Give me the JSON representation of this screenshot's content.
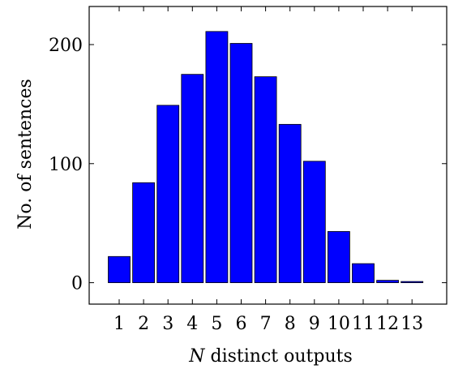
{
  "chart_data": {
    "type": "bar",
    "categories": [
      "1",
      "2",
      "3",
      "4",
      "5",
      "6",
      "7",
      "8",
      "9",
      "10",
      "11",
      "12",
      "13"
    ],
    "values": [
      22,
      84,
      149,
      175,
      211,
      201,
      173,
      133,
      102,
      43,
      16,
      2,
      1
    ],
    "xlabel_var": "N",
    "xlabel_text": " distinct outputs",
    "ylabel": "No. of sentences",
    "yticks": [
      0,
      100,
      200
    ],
    "ylim": [
      -18,
      232
    ],
    "grid": false,
    "legend": "none",
    "colors": {
      "bar_fill": "#0000ff",
      "bar_stroke": "#000000"
    }
  }
}
